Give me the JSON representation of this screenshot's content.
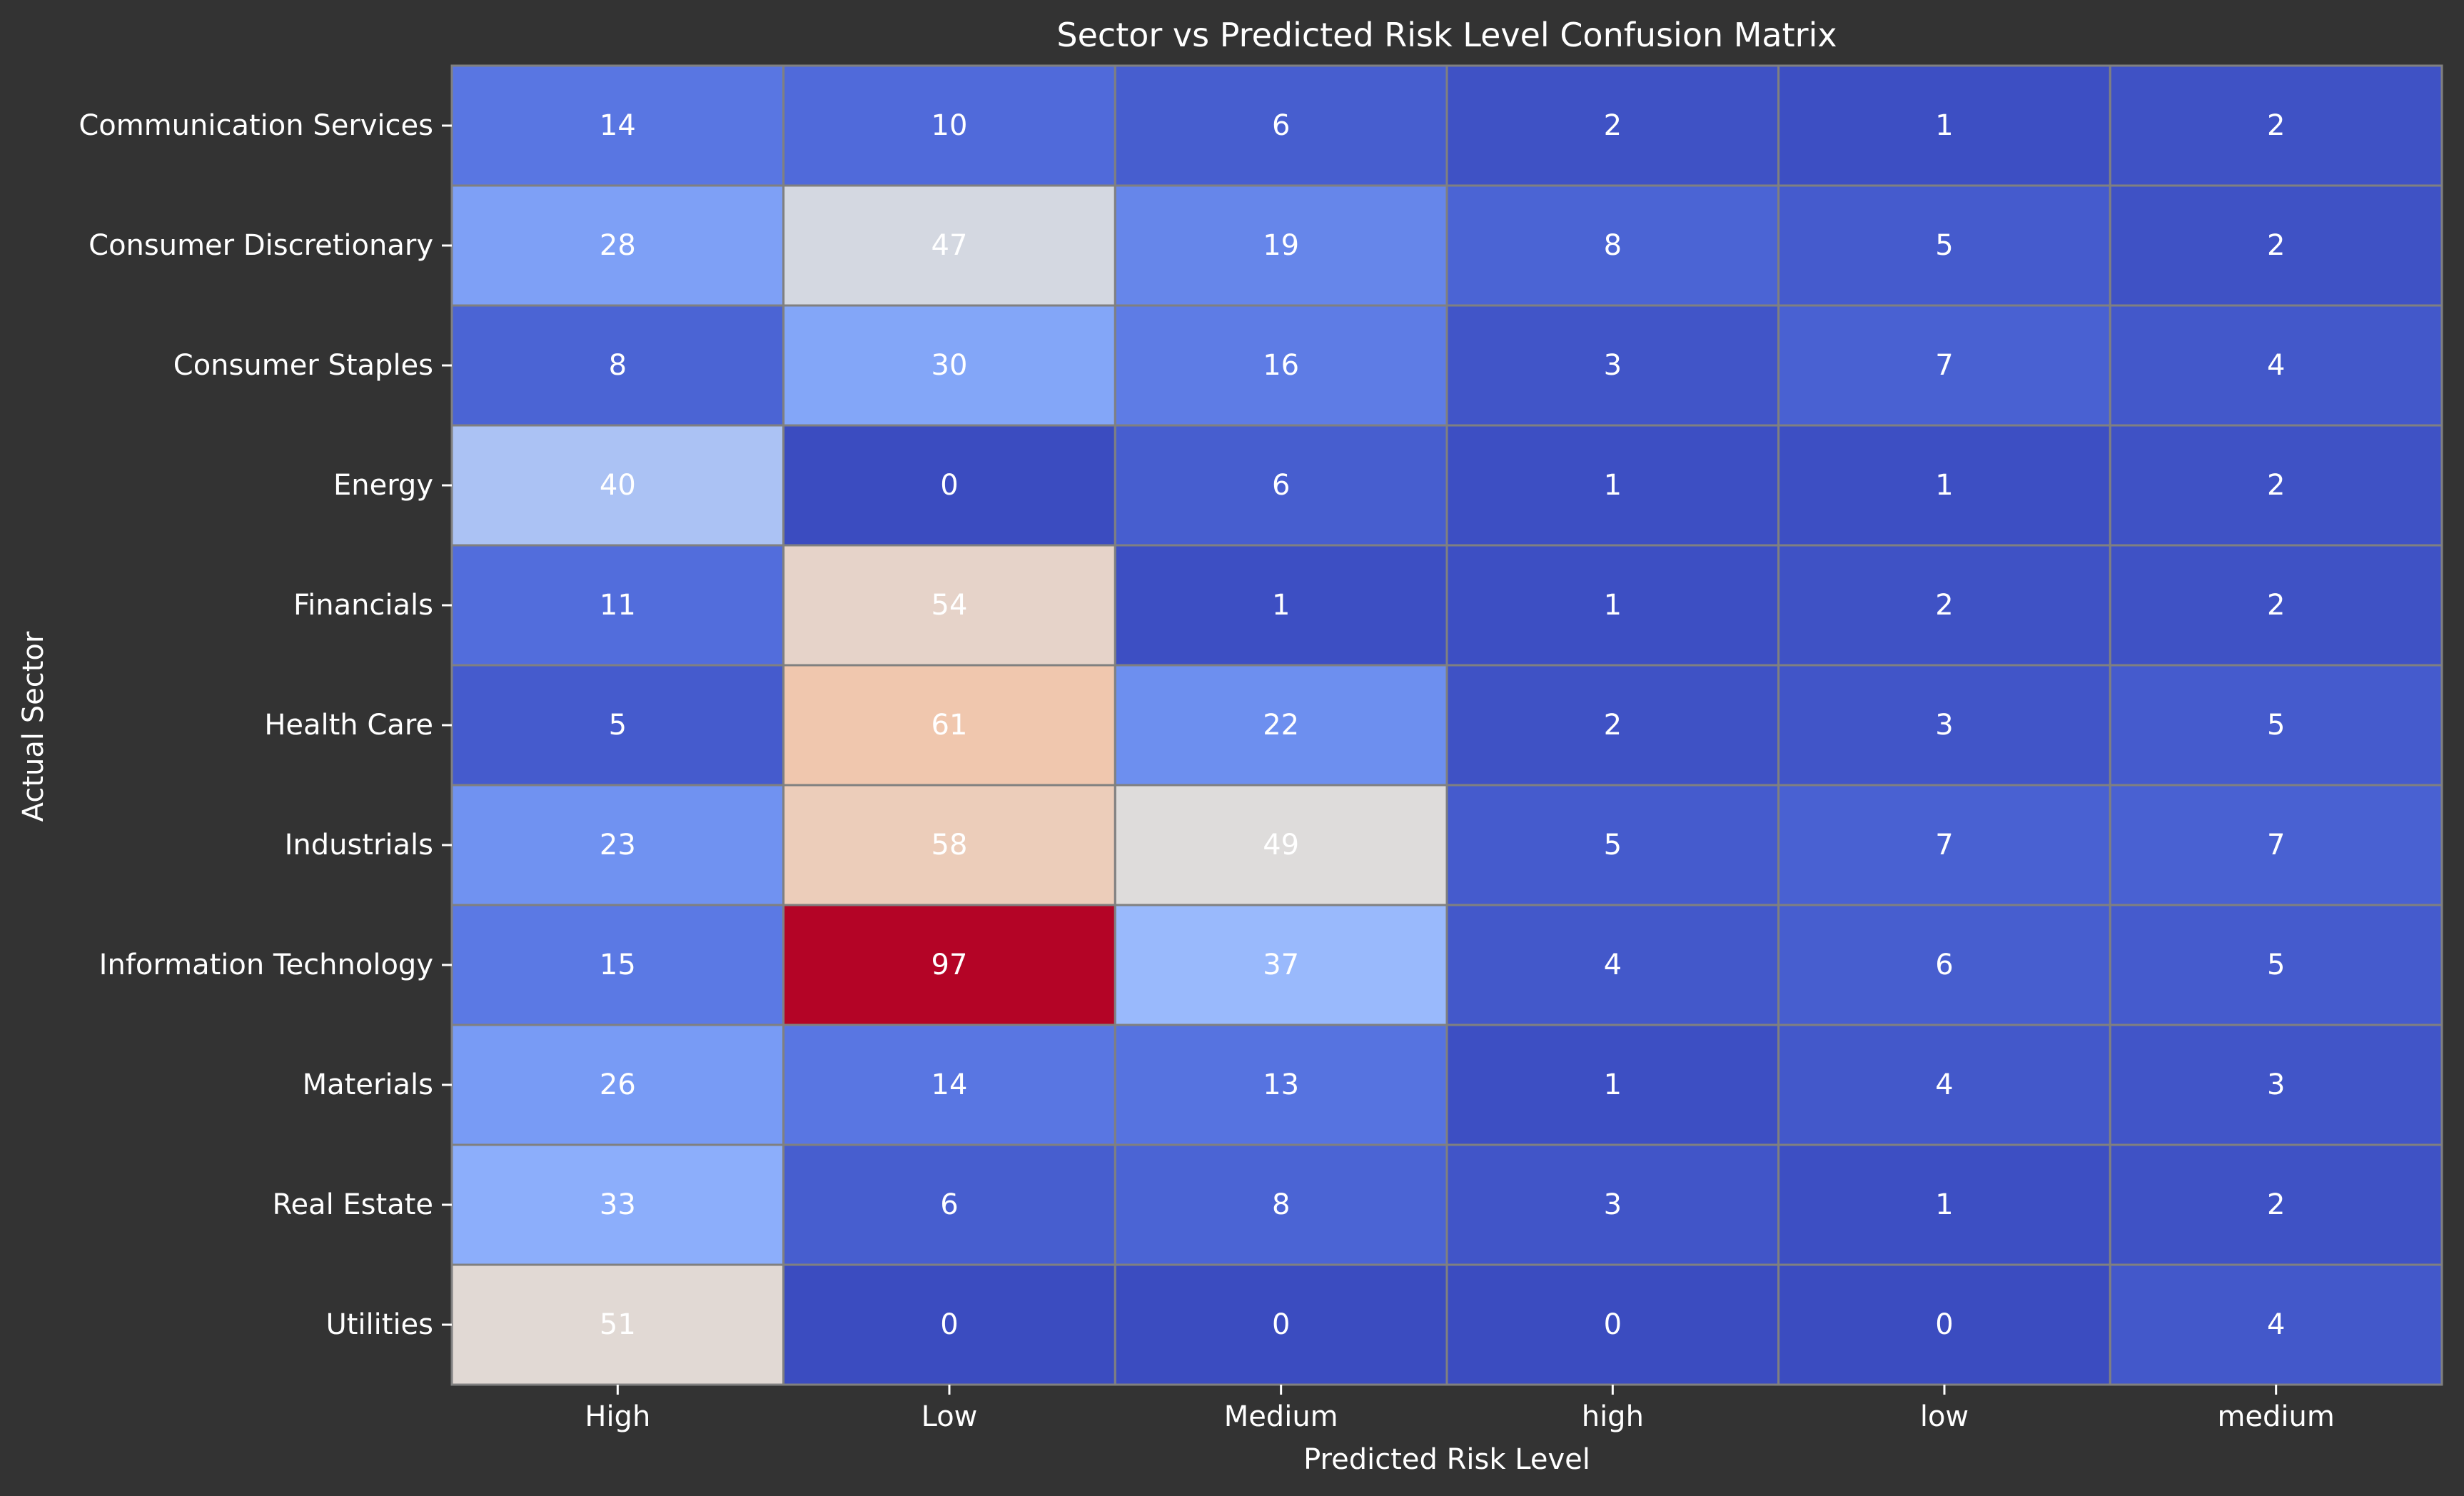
{
  "chart_data": {
    "type": "heatmap",
    "title": "Sector vs Predicted Risk Level Confusion Matrix",
    "xlabel": "Predicted Risk Level",
    "ylabel": "Actual Sector",
    "x_categories": [
      "High",
      "Low",
      "Medium",
      "high",
      "low",
      "medium"
    ],
    "y_categories": [
      "Communication Services",
      "Consumer Discretionary",
      "Consumer Staples",
      "Energy",
      "Financials",
      "Health Care",
      "Industrials",
      "Information Technology",
      "Materials",
      "Real Estate",
      "Utilities"
    ],
    "values": [
      [
        14,
        10,
        6,
        2,
        1,
        2
      ],
      [
        28,
        47,
        19,
        8,
        5,
        2
      ],
      [
        8,
        30,
        16,
        3,
        7,
        4
      ],
      [
        40,
        0,
        6,
        1,
        1,
        2
      ],
      [
        11,
        54,
        1,
        1,
        2,
        2
      ],
      [
        5,
        61,
        22,
        2,
        3,
        5
      ],
      [
        23,
        58,
        49,
        5,
        7,
        7
      ],
      [
        15,
        97,
        37,
        4,
        6,
        5
      ],
      [
        26,
        14,
        13,
        1,
        4,
        3
      ],
      [
        33,
        6,
        8,
        3,
        1,
        2
      ],
      [
        51,
        0,
        0,
        0,
        0,
        4
      ]
    ],
    "value_range": [
      0,
      97
    ],
    "colormap": "coolwarm",
    "colorbar": false,
    "annotated": true,
    "cell_border_color": "#808080",
    "background_color": "#333333",
    "text_color": "#ffffff"
  }
}
